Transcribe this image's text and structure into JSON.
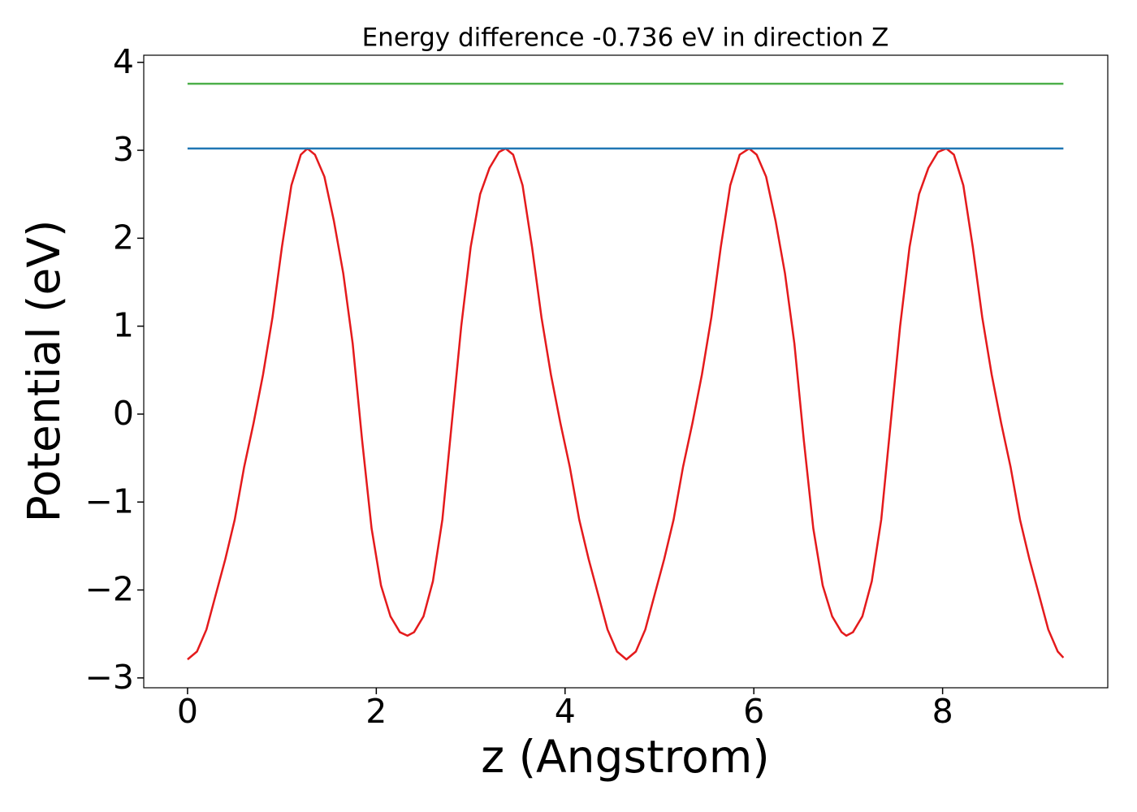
{
  "chart_data": {
    "type": "line",
    "title": "Energy difference -0.736 eV in direction Z",
    "x_label": "z (Angstrom)",
    "y_label": "Potential (eV)",
    "xlim": [
      -0.464,
      9.75
    ],
    "ylim": [
      -3.112,
      4.081
    ],
    "xticks": [
      0,
      2,
      4,
      6,
      8
    ],
    "yticks": [
      {
        "value": -3,
        "label": "−3"
      },
      {
        "value": -2,
        "label": "−2"
      },
      {
        "value": -1,
        "label": "−1"
      },
      0,
      1,
      2,
      3,
      4
    ],
    "grid": false,
    "series": [
      {
        "color": "#e41a1c",
        "x": [
          0,
          0.1,
          0.2,
          0.3,
          0.4,
          0.5,
          0.6,
          0.7,
          0.8,
          0.9,
          1.0,
          1.1,
          1.2,
          1.27,
          1.35,
          1.45,
          1.55,
          1.65,
          1.75,
          1.85,
          1.95,
          2.05,
          2.15,
          2.25,
          2.33,
          2.4,
          2.5,
          2.6,
          2.7,
          2.8,
          2.9,
          3.0,
          3.1,
          3.2,
          3.3,
          3.37,
          3.45,
          3.55,
          3.65,
          3.75,
          3.85,
          3.95,
          4.05,
          4.15,
          4.25,
          4.35,
          4.45,
          4.55,
          4.65,
          4.75,
          4.85,
          4.95,
          5.05,
          5.15,
          5.25,
          5.35,
          5.45,
          5.55,
          5.65,
          5.75,
          5.85,
          5.95,
          6.03,
          6.13,
          6.23,
          6.33,
          6.43,
          6.53,
          6.63,
          6.73,
          6.83,
          6.93,
          6.98,
          7.05,
          7.15,
          7.25,
          7.35,
          7.45,
          7.55,
          7.65,
          7.75,
          7.85,
          7.95,
          8.04,
          8.12,
          8.22,
          8.32,
          8.42,
          8.52,
          8.62,
          8.72,
          8.82,
          8.92,
          9.02,
          9.12,
          9.22,
          9.28
        ],
        "values": [
          -2.79,
          -2.7,
          -2.45,
          -2.05,
          -1.65,
          -1.2,
          -0.6,
          -0.1,
          0.45,
          1.1,
          1.9,
          2.6,
          2.95,
          3.02,
          2.95,
          2.7,
          2.2,
          1.6,
          0.8,
          -0.3,
          -1.3,
          -1.95,
          -2.3,
          -2.48,
          -2.52,
          -2.48,
          -2.3,
          -1.9,
          -1.2,
          -0.1,
          1.0,
          1.9,
          2.5,
          2.8,
          2.98,
          3.02,
          2.95,
          2.6,
          1.9,
          1.1,
          0.45,
          -0.1,
          -0.6,
          -1.2,
          -1.65,
          -2.05,
          -2.45,
          -2.7,
          -2.79,
          -2.7,
          -2.45,
          -2.05,
          -1.65,
          -1.2,
          -0.6,
          -0.1,
          0.45,
          1.1,
          1.9,
          2.6,
          2.95,
          3.02,
          2.95,
          2.7,
          2.2,
          1.6,
          0.8,
          -0.3,
          -1.3,
          -1.95,
          -2.3,
          -2.48,
          -2.52,
          -2.48,
          -2.3,
          -1.9,
          -1.2,
          -0.1,
          1.0,
          1.9,
          2.5,
          2.8,
          2.98,
          3.02,
          2.95,
          2.6,
          1.9,
          1.1,
          0.45,
          -0.1,
          -0.6,
          -1.2,
          -1.65,
          -2.05,
          -2.45,
          -2.7,
          -2.77
        ]
      },
      {
        "color": "#1f77b4",
        "x": [
          0,
          9.28
        ],
        "values": [
          3.02,
          3.02
        ]
      },
      {
        "color": "#4daf4a",
        "x": [
          0,
          9.28
        ],
        "values": [
          3.757,
          3.757
        ]
      }
    ]
  }
}
